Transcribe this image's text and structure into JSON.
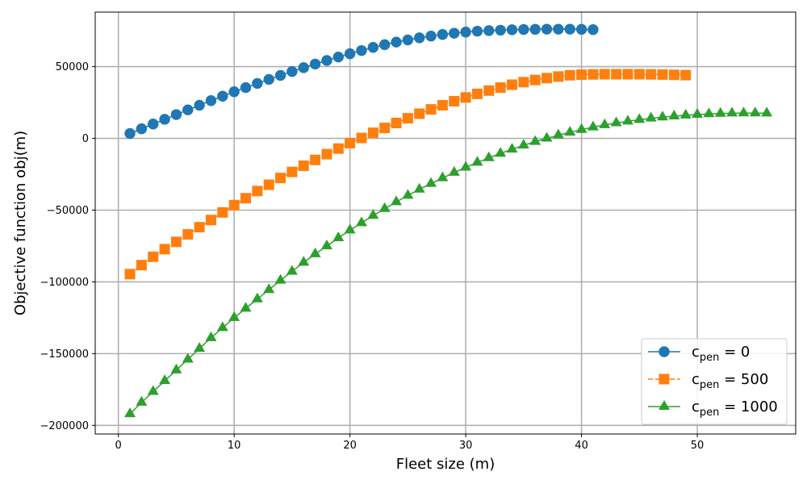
{
  "chart_data": {
    "type": "line",
    "xlabel": "Fleet size (m)",
    "ylabel": "Objective function obj(m)",
    "xlim": [
      -2,
      58.5
    ],
    "ylim": [
      -206000,
      88000
    ],
    "xticks": [
      0,
      10,
      20,
      30,
      40,
      50
    ],
    "yticks": [
      -200000,
      -150000,
      -100000,
      -50000,
      0,
      50000
    ],
    "grid": true,
    "legend_position": "lower-right",
    "series": [
      {
        "name": "c_pen = 0",
        "legend_main": "c",
        "legend_sub": "pen",
        "legend_value": " = 0",
        "color": "#1f77b4",
        "marker": "circle",
        "linestyle": "solid",
        "x": [
          1,
          2,
          3,
          4,
          5,
          6,
          7,
          8,
          9,
          10,
          11,
          12,
          13,
          14,
          15,
          16,
          17,
          18,
          19,
          20,
          21,
          22,
          23,
          24,
          25,
          26,
          27,
          28,
          29,
          30,
          31,
          32,
          33,
          34,
          35,
          36,
          37,
          38,
          39,
          40,
          41
        ],
        "y": [
          3400,
          6700,
          10000,
          13300,
          16600,
          19900,
          23100,
          26300,
          29400,
          32500,
          35400,
          38300,
          41100,
          43900,
          46600,
          49300,
          51800,
          54300,
          56700,
          59000,
          61200,
          63400,
          65300,
          67100,
          68600,
          70100,
          71300,
          72400,
          73300,
          74100,
          74700,
          75100,
          75400,
          75700,
          75900,
          76000,
          76100,
          76100,
          76100,
          76000,
          75800
        ]
      },
      {
        "name": "c_pen = 500",
        "legend_main": "c",
        "legend_sub": "pen",
        "legend_value": " = 500",
        "color": "#ff7f0e",
        "marker": "square",
        "linestyle": "dashed",
        "x": [
          1,
          2,
          3,
          4,
          5,
          6,
          7,
          8,
          9,
          10,
          11,
          12,
          13,
          14,
          15,
          16,
          17,
          18,
          19,
          20,
          21,
          22,
          23,
          24,
          25,
          26,
          27,
          28,
          29,
          30,
          31,
          32,
          33,
          34,
          35,
          36,
          37,
          38,
          39,
          40,
          41,
          42,
          43,
          44,
          45,
          46,
          47,
          48,
          49
        ],
        "y": [
          -94600,
          -88300,
          -82500,
          -77200,
          -72100,
          -66900,
          -61900,
          -56900,
          -51600,
          -46500,
          -41700,
          -36700,
          -32300,
          -27600,
          -23400,
          -19100,
          -15000,
          -11000,
          -7100,
          -3300,
          300,
          3900,
          7300,
          10700,
          14000,
          17200,
          20200,
          23100,
          25900,
          28500,
          31000,
          33300,
          35400,
          37400,
          39200,
          40700,
          42000,
          43100,
          44000,
          44400,
          44600,
          44700,
          44700,
          44700,
          44700,
          44600,
          44500,
          44300,
          44100
        ]
      },
      {
        "name": "c_pen = 1000",
        "legend_main": "c",
        "legend_sub": "pen",
        "legend_value": " = 1000",
        "color": "#2ca02c",
        "marker": "triangle",
        "linestyle": "solid",
        "x": [
          1,
          2,
          3,
          4,
          5,
          6,
          7,
          8,
          9,
          10,
          11,
          12,
          13,
          14,
          15,
          16,
          17,
          18,
          19,
          20,
          21,
          22,
          23,
          24,
          25,
          26,
          27,
          28,
          29,
          30,
          31,
          32,
          33,
          34,
          35,
          36,
          37,
          38,
          39,
          40,
          41,
          42,
          43,
          44,
          45,
          46,
          47,
          48,
          49,
          50,
          51,
          52,
          53,
          54,
          55,
          56
        ],
        "y": [
          -192000,
          -184000,
          -176500,
          -169000,
          -161500,
          -154000,
          -146500,
          -139000,
          -132000,
          -125000,
          -118500,
          -112000,
          -105500,
          -99000,
          -92700,
          -86500,
          -80600,
          -75000,
          -69400,
          -64000,
          -58900,
          -53800,
          -49000,
          -44300,
          -39800,
          -35500,
          -31500,
          -27600,
          -23800,
          -20200,
          -16800,
          -13600,
          -10500,
          -7600,
          -4800,
          -2300,
          0,
          2200,
          4200,
          6100,
          7800,
          9400,
          10700,
          11900,
          13000,
          14000,
          14800,
          15500,
          16100,
          16600,
          17000,
          17300,
          17500,
          17600,
          17600,
          17500
        ]
      }
    ]
  }
}
